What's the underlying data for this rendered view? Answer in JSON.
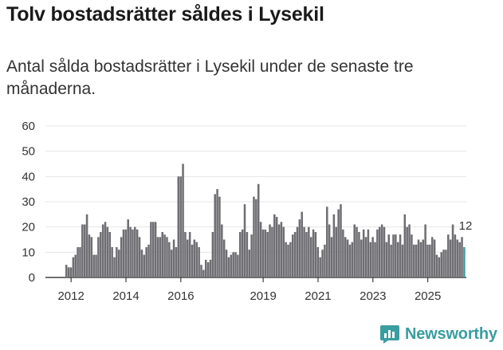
{
  "header": {
    "title": "Tolv bostadsrätter såldes i Lysekil",
    "subtitle": "Antal sålda bostadsrätter i Lysekil under de senaste tre månaderna."
  },
  "brand": {
    "name": "Newsworthy",
    "color": "#3a9da0"
  },
  "colors": {
    "bar": "#6e6e73",
    "current_bar": "#3a9da0",
    "text": "#333333",
    "grid": "#e6e6e6"
  },
  "chart_data": {
    "type": "bar",
    "title": "Tolv bostadsrätter såldes i Lysekil",
    "xlabel": "",
    "ylabel": "",
    "ylim": [
      0,
      60
    ],
    "yticks": [
      "0",
      "10",
      "20",
      "30",
      "40",
      "50",
      "60"
    ],
    "xticks": [
      {
        "label": "2012",
        "year": 2012
      },
      {
        "label": "2014",
        "year": 2014
      },
      {
        "label": "2016",
        "year": 2016
      },
      {
        "label": "2019",
        "year": 2019
      },
      {
        "label": "2021",
        "year": 2021
      },
      {
        "label": "2023",
        "year": 2023
      },
      {
        "label": "2025",
        "year": 2025
      }
    ],
    "x_start": "2011-11",
    "annotation": {
      "label": "12",
      "value": 12
    },
    "series": [
      {
        "name": "Sålda bostadsrätter",
        "values": [
          5,
          4,
          4,
          8,
          9,
          12,
          12,
          21,
          21,
          25,
          17,
          16,
          9,
          9,
          16,
          18,
          21,
          22,
          20,
          18,
          12,
          8,
          12,
          11,
          16,
          19,
          19,
          23,
          20,
          19,
          20,
          19,
          16,
          11,
          9,
          12,
          13,
          22,
          22,
          22,
          16,
          16,
          18,
          17,
          16,
          14,
          11,
          15,
          12,
          40,
          40,
          45,
          18,
          15,
          18,
          13,
          15,
          14,
          12,
          5,
          3,
          7,
          6,
          7,
          18,
          33,
          35,
          32,
          21,
          15,
          11,
          8,
          9,
          10,
          10,
          9,
          18,
          19,
          29,
          18,
          11,
          17,
          32,
          31,
          37,
          22,
          19,
          19,
          18,
          21,
          20,
          25,
          24,
          21,
          22,
          20,
          14,
          13,
          14,
          17,
          18,
          20,
          23,
          26,
          20,
          18,
          20,
          16,
          19,
          18,
          12,
          8,
          11,
          13,
          28,
          21,
          16,
          25,
          20,
          27,
          29,
          19,
          16,
          15,
          13,
          14,
          21,
          20,
          18,
          15,
          19,
          16,
          19,
          14,
          16,
          14,
          19,
          20,
          21,
          20,
          14,
          17,
          13,
          17,
          17,
          14,
          17,
          13,
          25,
          20,
          21,
          17,
          13,
          13,
          15,
          14,
          15,
          21,
          13,
          13,
          16,
          15,
          9,
          8,
          10,
          11,
          11,
          17,
          15,
          21,
          17,
          15,
          14,
          16,
          12
        ]
      }
    ]
  }
}
